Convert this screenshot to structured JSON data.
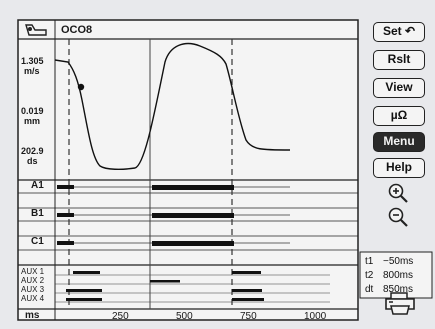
{
  "header": {
    "title": "OCO8",
    "icon": "motor-icon"
  },
  "y_labels": [
    {
      "value": "1.305",
      "unit": "m/s"
    },
    {
      "value": "0.019",
      "unit": "mm"
    },
    {
      "value": "202.9",
      "unit": "ds"
    }
  ],
  "channels": [
    "A1",
    "B1",
    "C1"
  ],
  "aux_channels": [
    "AUX 1",
    "AUX 2",
    "AUX 3",
    "AUX 4"
  ],
  "x_axis": {
    "unit": "ms",
    "ticks": [
      "250",
      "500",
      "750",
      "1000"
    ]
  },
  "buttons": {
    "set": "Set ↶",
    "rslt": "Rslt",
    "view": "View",
    "mu_ohm": "µΩ",
    "menu": "Menu",
    "help": "Help"
  },
  "zoom": {
    "in_icon": "zoom-in-icon",
    "out_icon": "zoom-out-icon"
  },
  "times": [
    {
      "label": "t1",
      "value": "−50ms"
    },
    {
      "label": "t2",
      "value": "800ms"
    },
    {
      "label": "dt",
      "value": "850ms"
    }
  ],
  "print_icon": "printer-icon"
}
